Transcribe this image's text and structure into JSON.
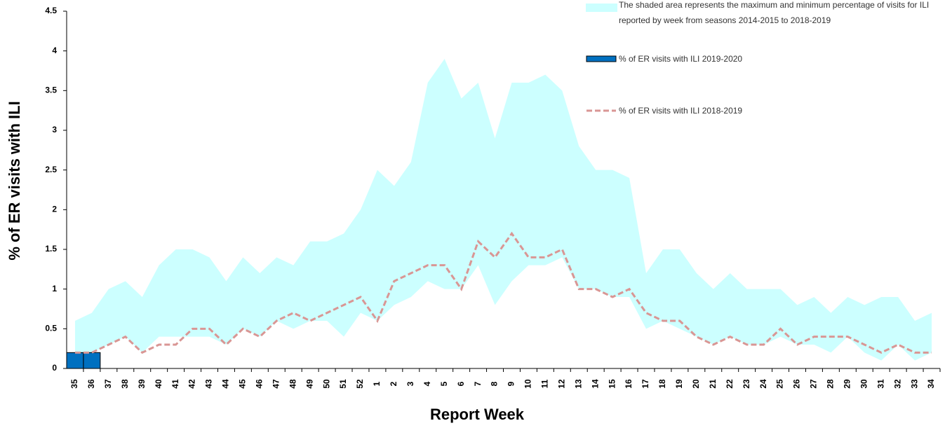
{
  "chart_data": {
    "type": "combo",
    "x_label": "Report Week",
    "y_label": "% of ER visits with ILI",
    "categories": [
      "35",
      "36",
      "37",
      "38",
      "39",
      "40",
      "41",
      "42",
      "43",
      "44",
      "45",
      "46",
      "47",
      "48",
      "49",
      "50",
      "51",
      "52",
      "1",
      "2",
      "3",
      "4",
      "5",
      "6",
      "7",
      "8",
      "9",
      "10",
      "11",
      "12",
      "13",
      "14",
      "15",
      "16",
      "17",
      "18",
      "19",
      "20",
      "21",
      "22",
      "23",
      "24",
      "25",
      "26",
      "27",
      "28",
      "29",
      "30",
      "31",
      "32",
      "33",
      "34"
    ],
    "ylim": [
      0,
      4.5
    ],
    "yticks": [
      0,
      0.5,
      1,
      1.5,
      2,
      2.5,
      3,
      3.5,
      4,
      4.5
    ],
    "series": [
      {
        "name": "The shaded area represents the maximum and minimum percentage of visits for ILI reported by week from seasons 2014-2015 to 2018-2019",
        "type": "range",
        "color": "#ccffff",
        "upper": [
          0.6,
          0.7,
          1.0,
          1.1,
          0.9,
          1.3,
          1.5,
          1.5,
          1.4,
          1.1,
          1.4,
          1.2,
          1.4,
          1.3,
          1.6,
          1.6,
          1.7,
          2.0,
          2.5,
          2.3,
          2.6,
          3.6,
          3.9,
          3.4,
          3.6,
          2.9,
          3.6,
          3.6,
          3.7,
          3.5,
          2.8,
          2.5,
          2.5,
          2.4,
          1.2,
          1.5,
          1.5,
          1.2,
          1.0,
          1.2,
          1.0,
          1.0,
          1.0,
          0.8,
          0.9,
          0.7,
          0.9,
          0.8,
          0.9,
          0.9,
          0.6,
          0.7
        ],
        "lower": [
          0.2,
          0.2,
          0.3,
          0.4,
          0.2,
          0.4,
          0.4,
          0.4,
          0.4,
          0.3,
          0.5,
          0.4,
          0.6,
          0.5,
          0.6,
          0.6,
          0.4,
          0.7,
          0.6,
          0.8,
          0.9,
          1.1,
          1.0,
          1.0,
          1.3,
          0.8,
          1.1,
          1.3,
          1.3,
          1.4,
          1.0,
          1.0,
          0.9,
          0.9,
          0.5,
          0.6,
          0.5,
          0.4,
          0.3,
          0.4,
          0.3,
          0.3,
          0.4,
          0.3,
          0.3,
          0.2,
          0.4,
          0.2,
          0.1,
          0.3,
          0.1,
          0.2
        ]
      },
      {
        "name": "% of ER visits with ILI 2019-2020",
        "type": "bar",
        "color": "#0070c0",
        "values": [
          0.2,
          0.2,
          null,
          null,
          null,
          null,
          null,
          null,
          null,
          null,
          null,
          null,
          null,
          null,
          null,
          null,
          null,
          null,
          null,
          null,
          null,
          null,
          null,
          null,
          null,
          null,
          null,
          null,
          null,
          null,
          null,
          null,
          null,
          null,
          null,
          null,
          null,
          null,
          null,
          null,
          null,
          null,
          null,
          null,
          null,
          null,
          null,
          null,
          null,
          null,
          null,
          null
        ]
      },
      {
        "name": "% of ER visits with ILI 2018-2019",
        "type": "line",
        "color": "#d99694",
        "dashed": true,
        "values": [
          0.2,
          0.2,
          0.3,
          0.4,
          0.2,
          0.3,
          0.3,
          0.5,
          0.5,
          0.3,
          0.5,
          0.4,
          0.6,
          0.7,
          0.6,
          0.7,
          0.8,
          0.9,
          0.6,
          1.1,
          1.2,
          1.3,
          1.3,
          1.0,
          1.6,
          1.4,
          1.7,
          1.4,
          1.4,
          1.5,
          1.0,
          1.0,
          0.9,
          1.0,
          0.7,
          0.6,
          0.6,
          0.4,
          0.3,
          0.4,
          0.3,
          0.3,
          0.5,
          0.3,
          0.4,
          0.4,
          0.4,
          0.3,
          0.2,
          0.3,
          0.2,
          0.2
        ]
      }
    ]
  }
}
